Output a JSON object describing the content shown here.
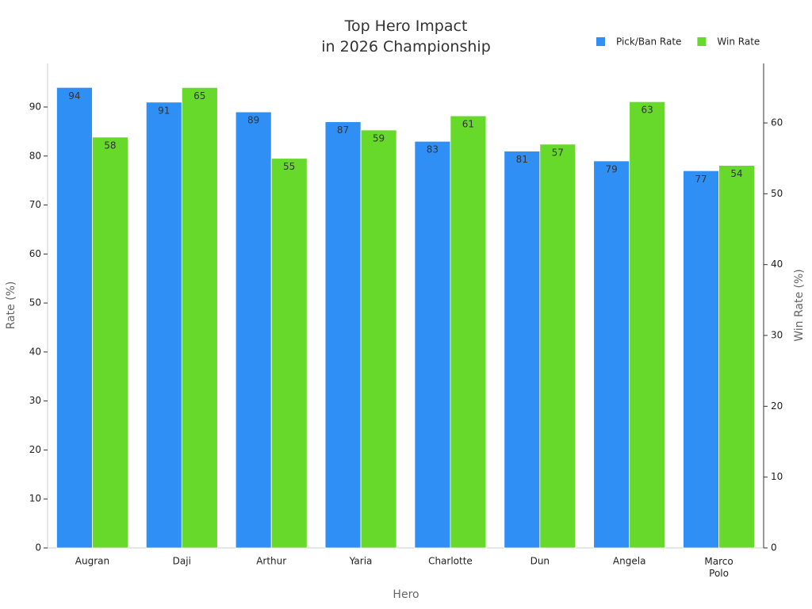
{
  "chart_data": {
    "type": "bar",
    "title": "Top Hero Impact\nin 2026 Championship",
    "x_label": "Hero",
    "y_label": "Rate (%)",
    "y2_label": "Win Rate (%)",
    "categories": [
      "Augran",
      "Daji",
      "Arthur",
      "Yaria",
      "Charlotte",
      "Dun",
      "Angela",
      "Marco Polo"
    ],
    "series": [
      {
        "name": "Pick/Ban Rate",
        "color": "#2f8ff5",
        "values": [
          94,
          91,
          89,
          87,
          83,
          81,
          79,
          77
        ]
      },
      {
        "name": "Win Rate",
        "color": "#66d92a",
        "axis": "y2",
        "values": [
          58,
          65,
          55,
          59,
          61,
          57,
          63,
          54
        ]
      }
    ],
    "ylim": [
      0,
      98.9
    ],
    "yticks": [
      0,
      10,
      20,
      30,
      40,
      50,
      60,
      70,
      80,
      90
    ],
    "y2lim": [
      0,
      68.4
    ],
    "y2ticks": [
      0,
      10,
      20,
      30,
      40,
      50,
      60
    ],
    "grid": false,
    "legend": "upper right"
  }
}
